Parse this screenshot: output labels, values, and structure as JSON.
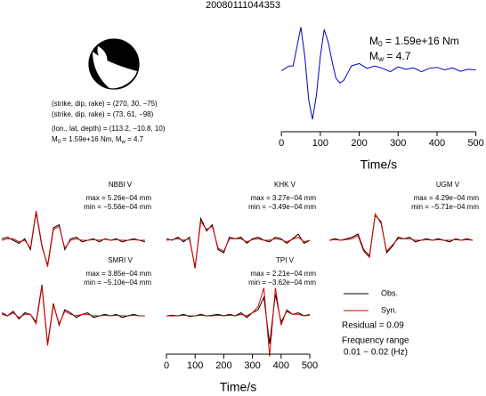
{
  "title": "20080111044353",
  "source_text": [
    "(strike, dip, rake) = (270, 30, −75)",
    "(strike, dip, rake) = (73, 61, −98)",
    "(lon., lat, depth) = (113.2, −10.8, 10)"
  ],
  "moment_line": [
    "M",
    "0",
    " = 1.59e+16 Nm, M",
    "w",
    " = 4.7"
  ],
  "notes": [
    "Residual = 0.09",
    "Frequency range",
    "0.01 − 0.02 (Hz)"
  ],
  "chart_data": [
    {
      "type": "line",
      "xlabel": "Time/s",
      "color": "#0000cc",
      "annotations": [
        [
          "M",
          "0",
          " = 1.59e+16 Nm"
        ],
        [
          "M",
          "w",
          " = 4.7"
        ]
      ],
      "x": [
        0,
        10,
        20,
        30,
        40,
        50,
        60,
        70,
        80,
        90,
        100,
        110,
        120,
        130,
        140,
        150,
        160,
        170,
        180,
        200,
        220,
        240,
        260,
        280,
        300,
        320,
        340,
        360,
        380,
        400,
        420,
        440,
        460,
        480,
        500
      ],
      "values": [
        0,
        0.05,
        0.1,
        0.1,
        0.5,
        0.9,
        0.3,
        -0.6,
        -1,
        -0.5,
        0.3,
        0.85,
        0.6,
        0.2,
        -0.15,
        -0.25,
        -0.2,
        -0.05,
        0.1,
        0.15,
        0.05,
        0.1,
        0.05,
        -0.02,
        0.08,
        0.03,
        0.06,
        -0.02,
        0.05,
        0.07,
        0.02,
        0.06,
        -0.01,
        0.03,
        0.02
      ],
      "xlim": [
        -5,
        510
      ],
      "ylim": [
        -1.2,
        1.0
      ],
      "xticks": [
        0,
        100,
        200,
        300,
        400,
        500
      ]
    },
    {
      "type": "line",
      "title": "NBBI V",
      "annotations": [
        "max = 5.26e−04 mm",
        "min = −5.56e−04 mm"
      ],
      "x": [
        0,
        20,
        40,
        60,
        80,
        100,
        120,
        140,
        160,
        180,
        200,
        220,
        240,
        260,
        280,
        300,
        320,
        340,
        360,
        380,
        400,
        420,
        440,
        460,
        480,
        500
      ],
      "xlim": [
        0,
        500
      ],
      "ylim": [
        -1,
        1
      ],
      "series": [
        {
          "name": "Obs.",
          "color": "#000000",
          "values": [
            0.05,
            0.1,
            0,
            -0.1,
            0.05,
            -0.3,
            0.9,
            -0.2,
            -0.8,
            0.4,
            0.5,
            -0.3,
            0.05,
            0.1,
            -0.05,
            0,
            0.05,
            -0.05,
            0.05,
            0,
            0.05,
            -0.05,
            0,
            0.05,
            0,
            -0.05
          ]
        },
        {
          "name": "Syn.",
          "color": "#dd0000",
          "values": [
            0,
            0.05,
            0.05,
            -0.05,
            0,
            -0.25,
            0.95,
            -0.15,
            -0.85,
            0.35,
            0.45,
            -0.25,
            0,
            0.05,
            0,
            0,
            0.02,
            0,
            0.03,
            0,
            0.02,
            0,
            0,
            0.02,
            0,
            0
          ]
        }
      ]
    },
    {
      "type": "line",
      "title": "KHK V",
      "annotations": [
        "max = 3.27e−04 mm",
        "min = −3.49e−04 mm"
      ],
      "x": [
        0,
        20,
        40,
        60,
        80,
        100,
        120,
        140,
        160,
        180,
        200,
        220,
        240,
        260,
        280,
        300,
        320,
        340,
        360,
        380,
        400,
        420,
        440,
        460,
        480,
        500
      ],
      "xlim": [
        0,
        500
      ],
      "ylim": [
        -1,
        1
      ],
      "series": [
        {
          "color": "#000000",
          "values": [
            0.05,
            0,
            0.1,
            -0.05,
            0.1,
            -0.9,
            0.7,
            0.3,
            0.5,
            -0.3,
            -0.4,
            0.1,
            0.05,
            0.1,
            -0.1,
            0.05,
            0.1,
            0,
            -0.05,
            0.1,
            0.05,
            -0.1,
            0.05,
            0.2,
            -0.1,
            0
          ]
        },
        {
          "color": "#dd0000",
          "values": [
            0,
            0.02,
            0.05,
            0,
            0.05,
            -0.85,
            0.6,
            0.35,
            0.45,
            -0.25,
            -0.35,
            0.05,
            0.05,
            0.05,
            -0.05,
            0.02,
            0.05,
            0,
            0,
            0.05,
            0.02,
            -0.05,
            0.03,
            0.1,
            -0.05,
            0
          ]
        }
      ]
    },
    {
      "type": "line",
      "title": "UGM V",
      "annotations": [
        "max = 4.29e−04 mm",
        "min = −5.71e−04 mm"
      ],
      "x": [
        0,
        20,
        40,
        60,
        80,
        100,
        120,
        140,
        160,
        180,
        200,
        220,
        240,
        260,
        280,
        300,
        320,
        340,
        360,
        380,
        400,
        420,
        440,
        460,
        480,
        500
      ],
      "xlim": [
        0,
        500
      ],
      "ylim": [
        -1,
        1
      ],
      "series": [
        {
          "color": "#000000",
          "values": [
            0,
            0.05,
            0,
            0.05,
            0.1,
            0.2,
            -0.3,
            -0.5,
            0.8,
            0.6,
            -0.4,
            -0.2,
            0.1,
            0.05,
            0.1,
            -0.05,
            0,
            0.05,
            0,
            0.05,
            0,
            -0.05,
            0.05,
            0,
            0.05,
            0
          ]
        },
        {
          "color": "#dd0000",
          "values": [
            0,
            0.02,
            0,
            0.02,
            0.05,
            0.15,
            -0.35,
            -0.55,
            0.85,
            0.55,
            -0.35,
            -0.15,
            0.05,
            0.05,
            0.05,
            0,
            0,
            0.02,
            0,
            0.02,
            0,
            0,
            0.02,
            0,
            0.02,
            0
          ]
        }
      ]
    },
    {
      "type": "line",
      "title": "SMRI V",
      "annotations": [
        "max = 3.85e−04 mm",
        "min = −5.10e−04 mm"
      ],
      "x": [
        0,
        20,
        40,
        60,
        80,
        100,
        120,
        140,
        160,
        180,
        200,
        220,
        240,
        260,
        280,
        300,
        320,
        340,
        360,
        380,
        400,
        420,
        440,
        460,
        480,
        500
      ],
      "xlim": [
        0,
        500
      ],
      "ylim": [
        -1,
        1
      ],
      "series": [
        {
          "color": "#000000",
          "values": [
            0.1,
            0,
            0.15,
            -0.1,
            0.1,
            0.05,
            -0.2,
            1,
            -0.9,
            0.4,
            -0.3,
            0.2,
            0.1,
            -0.05,
            0.05,
            0.1,
            -0.05,
            0,
            0.05,
            0,
            0.05,
            -0.05,
            0,
            0.05,
            0,
            0
          ]
        },
        {
          "color": "#dd0000",
          "values": [
            0.05,
            0,
            0.1,
            -0.05,
            0.05,
            0.05,
            -0.25,
            0.95,
            -0.95,
            0.35,
            -0.25,
            0.15,
            0.05,
            0,
            0.05,
            0.05,
            0,
            0,
            0.02,
            0,
            0.02,
            0,
            0,
            0.02,
            0,
            0
          ]
        }
      ]
    },
    {
      "type": "line",
      "title": "TPI V",
      "annotations": [
        "max = 2.21e−04 mm",
        "min = −3.62e−04 mm"
      ],
      "xlabel": "Time/s",
      "x": [
        0,
        20,
        40,
        60,
        80,
        100,
        120,
        140,
        160,
        180,
        200,
        220,
        240,
        260,
        280,
        300,
        320,
        340,
        360,
        380,
        400,
        420,
        440,
        460,
        480,
        500
      ],
      "xlim": [
        0,
        500
      ],
      "ylim": [
        -1,
        1
      ],
      "xticks": [
        0,
        100,
        200,
        300,
        400,
        500
      ],
      "series": [
        {
          "color": "#000000",
          "values": [
            0,
            0.02,
            0,
            0.05,
            -0.02,
            0,
            0.05,
            0,
            0.02,
            0.05,
            0,
            0.05,
            0,
            0.1,
            -0.05,
            0.1,
            0.2,
            0.6,
            -0.9,
            0.7,
            -0.2,
            0.15,
            0.05,
            0.1,
            0,
            0.05
          ]
        },
        {
          "color": "#dd0000",
          "values": [
            0,
            0,
            0,
            0.02,
            0,
            0,
            0.02,
            0,
            0,
            0.02,
            0,
            0.02,
            0,
            0.05,
            0,
            0.1,
            0.3,
            0.9,
            -1.3,
            0.9,
            -0.3,
            0.2,
            0.05,
            0.05,
            0,
            0.02
          ]
        }
      ]
    }
  ]
}
